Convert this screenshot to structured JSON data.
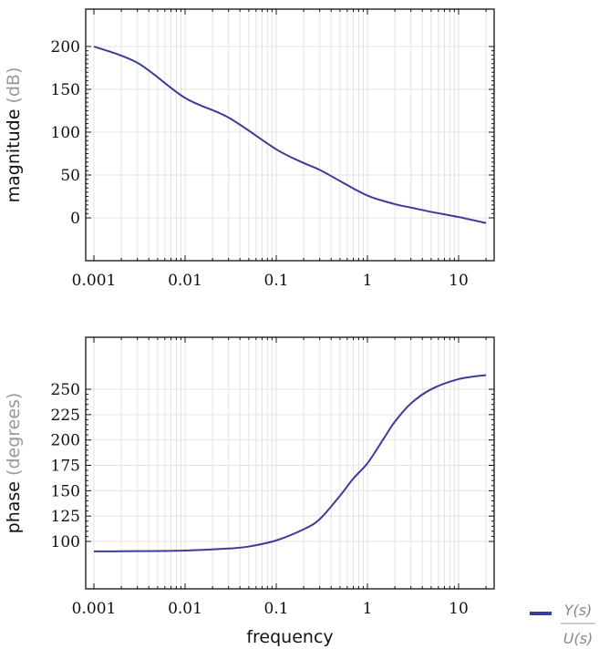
{
  "chart_data": [
    {
      "type": "line",
      "title": "",
      "xlabel": "",
      "ylabel": "magnitude",
      "ylabel_unit": "(dB)",
      "xscale": "log",
      "xlim": [
        0.001,
        20
      ],
      "ylim": [
        -48,
        245
      ],
      "xticks": [
        "0.001",
        "0.01",
        "0.1",
        "1",
        "10"
      ],
      "yticks": [
        "0",
        "50",
        "100",
        "150",
        "200"
      ],
      "grid": true,
      "series": [
        {
          "name": "Y(s)/U(s)",
          "color": "#3a3d99",
          "x": [
            0.001,
            0.003,
            0.01,
            0.03,
            0.1,
            0.2,
            0.3,
            0.5,
            1,
            2,
            3,
            5,
            10,
            20
          ],
          "y": [
            200,
            181,
            140,
            117,
            80,
            64,
            56,
            43,
            26,
            16,
            12,
            7,
            1,
            -6
          ]
        }
      ]
    },
    {
      "type": "line",
      "title": "",
      "xlabel": "frequency",
      "ylabel": "phase",
      "ylabel_unit": "(degrees)",
      "xscale": "log",
      "xlim": [
        0.001,
        20
      ],
      "ylim": [
        52,
        301
      ],
      "xticks": [
        "0.001",
        "0.01",
        "0.1",
        "1",
        "10"
      ],
      "yticks": [
        "100",
        "125",
        "150",
        "175",
        "200",
        "225",
        "250"
      ],
      "grid": true,
      "series": [
        {
          "name": "Y(s)/U(s)",
          "color": "#3a3d99",
          "x": [
            0.001,
            0.003,
            0.01,
            0.03,
            0.05,
            0.1,
            0.2,
            0.3,
            0.5,
            0.7,
            1,
            1.5,
            2,
            3,
            5,
            10,
            20
          ],
          "y": [
            90.2,
            90.4,
            91,
            93,
            95,
            101,
            112,
            122,
            145,
            162,
            177,
            201,
            218,
            236,
            250,
            260,
            264
          ]
        }
      ]
    }
  ],
  "legend": {
    "label_numerator": "Y(s)",
    "label_denominator": "U(s)",
    "color": "#3a3d99"
  },
  "axes": {
    "top": {
      "ylabel": "magnitude",
      "unit": "(dB)"
    },
    "bottom": {
      "ylabel": "phase",
      "unit": "(degrees)",
      "xlabel": "frequency"
    }
  }
}
